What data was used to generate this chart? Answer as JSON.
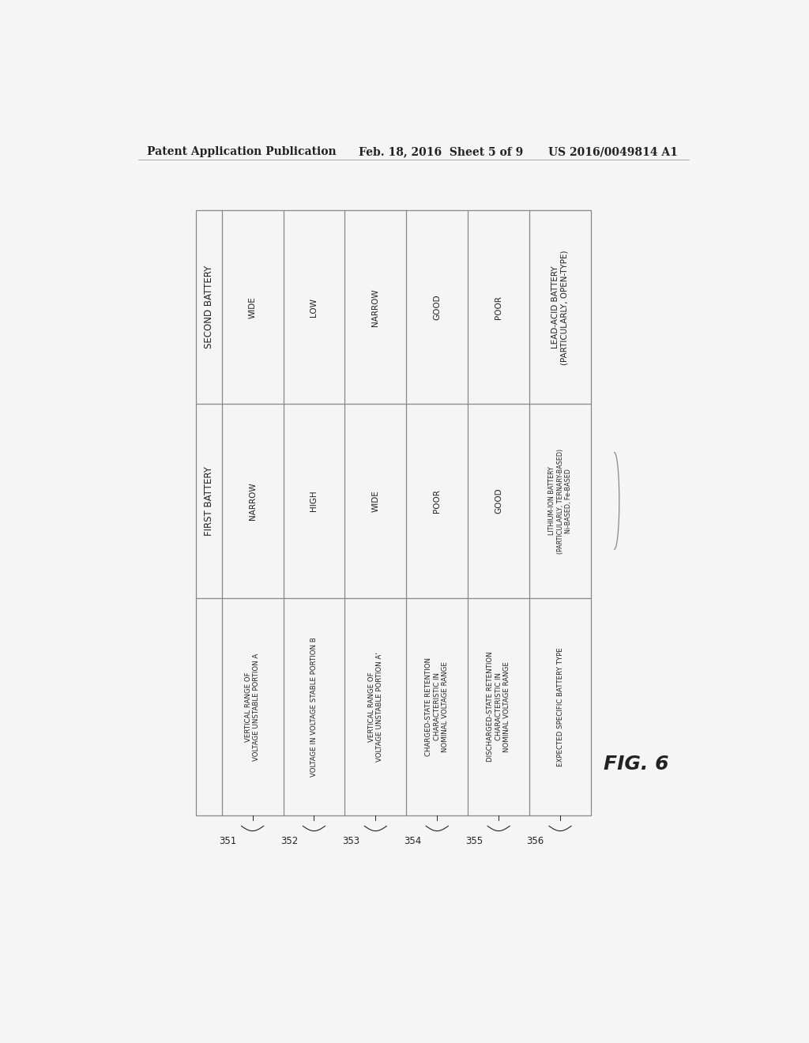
{
  "header_left": "Patent Application Publication",
  "header_mid": "Feb. 18, 2016  Sheet 5 of 9",
  "header_right": "US 2016/0049814 A1",
  "fig_label": "FIG. 6",
  "background_color": "#f5f5f5",
  "table": {
    "n_data_cols": 6,
    "row_labels": [
      "SECOND BATTERY",
      "FIRST BATTERY",
      ""
    ],
    "col_labels": [
      "VERTICAL RANGE OF\nVOLTAGE UNSTABLE PORTION A",
      "VOLTAGE IN VOLTAGE STABLE PORTION B",
      "VERTICAL RANGE OF\nVOLTAGE UNSTABLE PORTION A'",
      "CHARGED-STATE RETENTION\nCHARACTERISTIC IN\nNOMINAL VOLTAGE RANGE",
      "DISCHARGED-STATE RETENTION\nCHARACTERISTIC IN\nNOMINAL VOLTAGE RANGE",
      "EXPECTED SPECIFIC BATTERY TYPE"
    ],
    "row_nums": [
      "351",
      "352",
      "353",
      "354",
      "355",
      "356"
    ],
    "first_battery": [
      "NARROW",
      "HIGH",
      "WIDE",
      "POOR",
      "GOOD",
      "LITHIUM-ION BATTERY\n(PARTICULARLY, TERNARY-BASED)\nNi-BASED, Fe-BASED"
    ],
    "second_battery": [
      "WIDE",
      "LOW",
      "NARROW",
      "GOOD",
      "POOR",
      "LEAD-ACID BATTERY\n(PARTICULARLY, OPEN-TYPE)"
    ]
  },
  "line_color": "#888888",
  "text_color": "#222222"
}
